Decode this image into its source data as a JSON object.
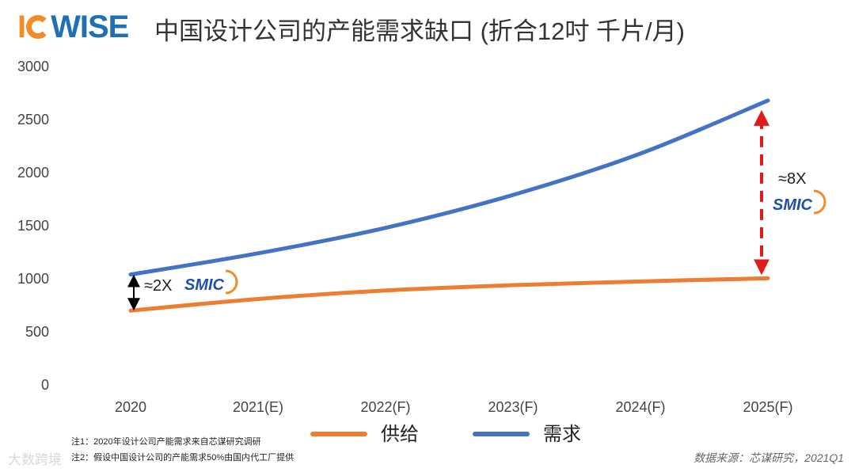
{
  "header": {
    "logo_text": "IC WISE",
    "title": "中国设计公司的产能需求缺口 (折合12吋 千片/月)"
  },
  "chart_data": {
    "type": "line",
    "categories": [
      "2020",
      "2021(E)",
      "2022(F)",
      "2023(F)",
      "2024(F)",
      "2025(F)"
    ],
    "series": [
      {
        "name": "供给",
        "color": "#ed7d31",
        "values": [
          700,
          810,
          890,
          940,
          975,
          1005
        ]
      },
      {
        "name": "需求",
        "color": "#4472c4",
        "values": [
          1040,
          1240,
          1480,
          1790,
          2180,
          2680
        ]
      }
    ],
    "ylim": [
      0,
      3000
    ],
    "yticks": [
      0,
      500,
      1000,
      1500,
      2000,
      2500,
      3000
    ],
    "grid": false,
    "legend_position": "bottom",
    "annotations": [
      {
        "text": "≈2X",
        "category": "2020",
        "logo": "SMIC"
      },
      {
        "text": "≈8X",
        "category": "2025(F)",
        "logo": "SMIC"
      }
    ]
  },
  "notes": {
    "note1": "注1：2020年设计公司产能需求来自芯谋研究调研",
    "note2": "注2：假设中国设计公司的产能需求50%由国内代工厂提供"
  },
  "source": "数据来源：芯谋研究，2021Q1",
  "watermark": "大数跨境"
}
